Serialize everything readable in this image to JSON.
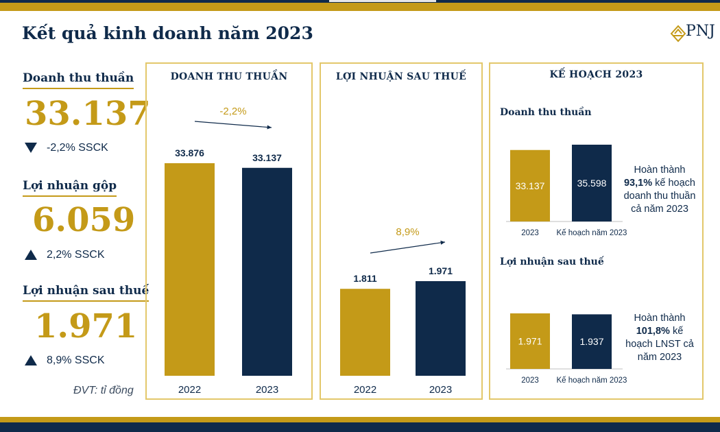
{
  "title": "Kết quả kinh doanh năm 2023",
  "logo": {
    "text": "PNJ"
  },
  "kpis": [
    {
      "label": "Doanh thu thuần",
      "value": "33.137",
      "change": "-2,2% SSCK",
      "direction": "down"
    },
    {
      "label": "Lợi nhuận gộp",
      "value": "6.059",
      "change": "2,2% SSCK",
      "direction": "up"
    },
    {
      "label": "Lợi nhuận sau thuế",
      "value": "1.971",
      "change": "8,9% SSCK",
      "direction": "up"
    }
  ],
  "unit_note": "ĐVT: tỉ đồng",
  "plan": {
    "title": "KẾ HOẠCH 2023",
    "revenue_label": "Doanh thu thuần",
    "revenue_note": [
      "Hoàn thành",
      "93,1%",
      " kế hoạch doanh thu thuần cả năm 2023"
    ],
    "profit_label": "Lợi nhuận sau thuế",
    "profit_note": [
      "Hoàn thành",
      "101,8%",
      " kế hoạch LNST cả năm 2023"
    ]
  },
  "colors": {
    "gold": "#c49a18",
    "navy": "#0f2a4a",
    "panel_border": "#e3c76a"
  },
  "chart_data": [
    {
      "type": "bar",
      "title": "DOANH THU THUẦN",
      "categories": [
        "2022",
        "2023"
      ],
      "values": [
        33876,
        33137
      ],
      "labels": [
        "33.876",
        "33.137"
      ],
      "annotation": "-2,2%",
      "colors": [
        "#c49a18",
        "#0f2a4a"
      ]
    },
    {
      "type": "bar",
      "title": "LỢI NHUẬN SAU THUẾ",
      "categories": [
        "2022",
        "2023"
      ],
      "values": [
        1811,
        1971
      ],
      "labels": [
        "1.811",
        "1.971"
      ],
      "annotation": "8,9%",
      "colors": [
        "#c49a18",
        "#0f2a4a"
      ]
    },
    {
      "type": "bar",
      "title": "Doanh thu thuần",
      "categories": [
        "2023",
        "Kế hoạch năm 2023"
      ],
      "values": [
        33137,
        35598
      ],
      "labels": [
        "33.137",
        "35.598"
      ],
      "colors": [
        "#c49a18",
        "#0f2a4a"
      ]
    },
    {
      "type": "bar",
      "title": "Lợi nhuận sau thuế",
      "categories": [
        "2023",
        "Kế hoạch năm 2023"
      ],
      "values": [
        1971,
        1937
      ],
      "labels": [
        "1.971",
        "1.937"
      ],
      "colors": [
        "#c49a18",
        "#0f2a4a"
      ]
    }
  ]
}
